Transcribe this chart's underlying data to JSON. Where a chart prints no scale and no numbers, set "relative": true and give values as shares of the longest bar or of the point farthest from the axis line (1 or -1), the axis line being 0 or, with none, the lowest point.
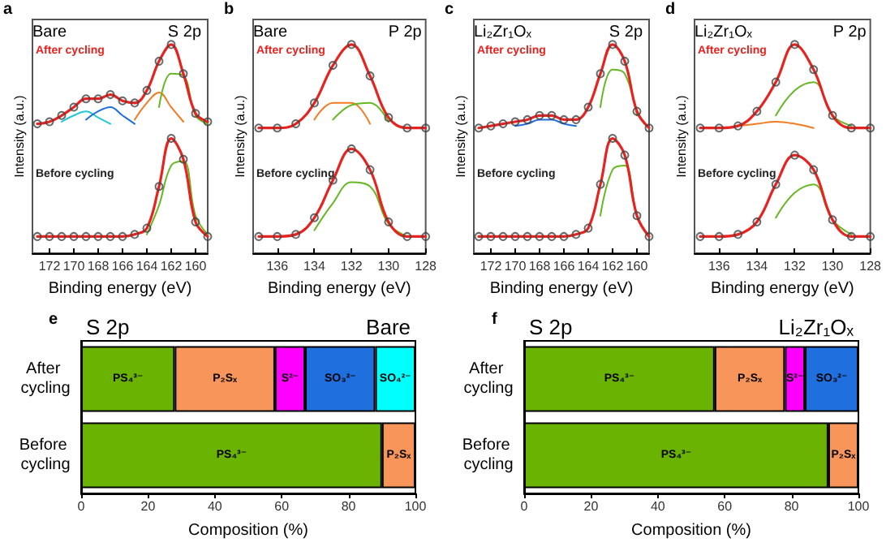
{
  "chart_data": [
    {
      "type": "line",
      "title": "Bare",
      "subtitle": "S 2p",
      "xlabel": "Binding energy (eV)",
      "ylabel": "Intensity (a.u.)",
      "annotations": [
        "a",
        "After cycling",
        "Before cycling"
      ],
      "relative": true,
      "xlim": [
        173.4,
        159
      ],
      "xticks": [
        172,
        170,
        168,
        166,
        164,
        162,
        160
      ],
      "series": [
        {
          "type": "scatter",
          "marker": "circle",
          "color": "#444444",
          "x": [
            173,
            172,
            171,
            170,
            169,
            168,
            167,
            166,
            165,
            164,
            163,
            162,
            161,
            160,
            159
          ],
          "values": [
            0.62,
            0.63,
            0.66,
            0.7,
            0.74,
            0.74,
            0.76,
            0.73,
            0.72,
            0.78,
            0.92,
            1.0,
            0.86,
            0.67,
            0.63
          ]
        },
        {
          "color": "#20c8d8",
          "x": [
            171,
            170,
            169,
            168,
            167
          ],
          "values": [
            0.63,
            0.66,
            0.68,
            0.65,
            0.62
          ]
        },
        {
          "color": "#1e6ee0",
          "x": [
            169,
            168,
            167,
            166,
            165
          ],
          "values": [
            0.64,
            0.68,
            0.7,
            0.66,
            0.62
          ]
        },
        {
          "color": "#f47a20",
          "x": [
            165,
            164,
            163,
            162,
            161
          ],
          "values": [
            0.64,
            0.72,
            0.77,
            0.7,
            0.63
          ]
        },
        {
          "color": "#66b822",
          "x": [
            163,
            162,
            161,
            160,
            159
          ],
          "values": [
            0.7,
            0.86,
            0.85,
            0.66,
            0.62
          ]
        },
        {
          "color": "#e8231f",
          "x": [
            173,
            172,
            171,
            170,
            169,
            168,
            167,
            166,
            165,
            164,
            163,
            162,
            161,
            160,
            159
          ],
          "values": [
            0.62,
            0.63,
            0.66,
            0.7,
            0.74,
            0.74,
            0.76,
            0.73,
            0.72,
            0.78,
            0.92,
            1.0,
            0.86,
            0.67,
            0.63
          ]
        },
        {
          "type": "scatter",
          "marker": "circle",
          "color": "#444444",
          "x": [
            173,
            172,
            171,
            170,
            169,
            168,
            167,
            166,
            165,
            164,
            163,
            162,
            161,
            160,
            159
          ],
          "values": [
            0.08,
            0.08,
            0.08,
            0.08,
            0.08,
            0.08,
            0.08,
            0.08,
            0.09,
            0.12,
            0.32,
            0.55,
            0.45,
            0.15,
            0.08
          ]
        },
        {
          "color": "#66b822",
          "x": [
            164,
            163,
            162,
            161,
            160,
            159
          ],
          "values": [
            0.09,
            0.23,
            0.42,
            0.44,
            0.18,
            0.09
          ]
        },
        {
          "color": "#e8231f",
          "x": [
            173,
            172,
            171,
            170,
            169,
            168,
            167,
            166,
            165,
            164,
            163,
            162,
            161,
            160,
            159
          ],
          "values": [
            0.08,
            0.08,
            0.08,
            0.08,
            0.08,
            0.08,
            0.08,
            0.08,
            0.09,
            0.12,
            0.32,
            0.55,
            0.45,
            0.15,
            0.08
          ]
        }
      ]
    },
    {
      "type": "line",
      "title": "Bare",
      "subtitle": "P 2p",
      "xlabel": "Binding energy (eV)",
      "ylabel": "Intensity (a.u.)",
      "annotations": [
        "b",
        "After cycling",
        "Before cycling"
      ],
      "relative": true,
      "xlim": [
        137.3,
        128
      ],
      "xticks": [
        136,
        134,
        132,
        130,
        128
      ],
      "series": [
        {
          "type": "scatter",
          "marker": "circle",
          "color": "#444444",
          "x": [
            137,
            136,
            135,
            134,
            133,
            132,
            131,
            130,
            129,
            128
          ],
          "values": [
            0.6,
            0.6,
            0.62,
            0.72,
            0.9,
            1.0,
            0.85,
            0.65,
            0.6,
            0.6
          ]
        },
        {
          "color": "#f47a20",
          "x": [
            134,
            133,
            132,
            131
          ],
          "values": [
            0.64,
            0.72,
            0.72,
            0.62
          ]
        },
        {
          "color": "#66b822",
          "x": [
            133,
            132,
            131,
            130
          ],
          "values": [
            0.64,
            0.71,
            0.72,
            0.63
          ]
        },
        {
          "color": "#e8231f",
          "x": [
            137,
            136,
            135,
            134,
            133,
            132,
            131,
            130,
            129,
            128
          ],
          "values": [
            0.6,
            0.6,
            0.62,
            0.72,
            0.9,
            1.0,
            0.85,
            0.65,
            0.6,
            0.6
          ]
        },
        {
          "type": "scatter",
          "marker": "circle",
          "color": "#444444",
          "x": [
            137,
            136,
            135,
            134,
            133,
            132,
            131,
            130,
            129,
            128
          ],
          "values": [
            0.08,
            0.08,
            0.09,
            0.17,
            0.35,
            0.5,
            0.4,
            0.15,
            0.08,
            0.08
          ]
        },
        {
          "color": "#66b822",
          "x": [
            134,
            133,
            132,
            131,
            130,
            129
          ],
          "values": [
            0.11,
            0.24,
            0.34,
            0.32,
            0.14,
            0.08
          ]
        },
        {
          "color": "#e8231f",
          "x": [
            137,
            136,
            135,
            134,
            133,
            132,
            131,
            130,
            129,
            128
          ],
          "values": [
            0.08,
            0.08,
            0.09,
            0.17,
            0.35,
            0.5,
            0.4,
            0.15,
            0.08,
            0.08
          ]
        }
      ]
    },
    {
      "type": "line",
      "title": "Li₂Zr₁Oₓ",
      "subtitle": "S 2p",
      "xlabel": "Binding energy (eV)",
      "ylabel": "Intensity (a.u.)",
      "annotations": [
        "c",
        "After cycling",
        "Before cycling"
      ],
      "relative": true,
      "xlim": [
        173.4,
        159
      ],
      "xticks": [
        172,
        170,
        168,
        166,
        164,
        162,
        160
      ],
      "series": [
        {
          "type": "scatter",
          "marker": "circle",
          "color": "#444444",
          "x": [
            173,
            172,
            171,
            170,
            169,
            168,
            167,
            166,
            165,
            164,
            163,
            162,
            161,
            160,
            159
          ],
          "values": [
            0.6,
            0.61,
            0.62,
            0.63,
            0.64,
            0.66,
            0.66,
            0.64,
            0.64,
            0.7,
            0.86,
            1.0,
            0.92,
            0.68,
            0.6
          ]
        },
        {
          "color": "#1e6ee0",
          "x": [
            170,
            169,
            168,
            167,
            166,
            165
          ],
          "values": [
            0.61,
            0.62,
            0.64,
            0.64,
            0.62,
            0.61
          ]
        },
        {
          "color": "#66b822",
          "x": [
            163,
            162,
            161,
            160
          ],
          "values": [
            0.7,
            0.88,
            0.86,
            0.66
          ]
        },
        {
          "color": "#e8231f",
          "x": [
            173,
            172,
            171,
            170,
            169,
            168,
            167,
            166,
            165,
            164,
            163,
            162,
            161,
            160,
            159
          ],
          "values": [
            0.6,
            0.61,
            0.62,
            0.63,
            0.64,
            0.66,
            0.66,
            0.64,
            0.64,
            0.7,
            0.86,
            1.0,
            0.92,
            0.68,
            0.6
          ]
        },
        {
          "type": "scatter",
          "marker": "circle",
          "color": "#444444",
          "x": [
            173,
            172,
            171,
            170,
            169,
            168,
            167,
            166,
            165,
            164,
            163,
            162,
            161,
            160,
            159
          ],
          "values": [
            0.08,
            0.08,
            0.08,
            0.08,
            0.08,
            0.08,
            0.08,
            0.08,
            0.09,
            0.12,
            0.33,
            0.55,
            0.47,
            0.18,
            0.08
          ]
        },
        {
          "color": "#66b822",
          "x": [
            163,
            162,
            161,
            160,
            159
          ],
          "values": [
            0.18,
            0.4,
            0.42,
            0.18,
            0.08
          ]
        },
        {
          "color": "#e8231f",
          "x": [
            173,
            172,
            171,
            170,
            169,
            168,
            167,
            166,
            165,
            164,
            163,
            162,
            161,
            160,
            159
          ],
          "values": [
            0.08,
            0.08,
            0.08,
            0.08,
            0.08,
            0.08,
            0.08,
            0.08,
            0.09,
            0.12,
            0.33,
            0.55,
            0.47,
            0.18,
            0.08
          ]
        }
      ]
    },
    {
      "type": "line",
      "title": "Li₂Zr₁Oₓ",
      "subtitle": "P 2p",
      "xlabel": "Binding energy (eV)",
      "ylabel": "Intensity (a.u.)",
      "annotations": [
        "d",
        "After cycling",
        "Before cycling"
      ],
      "relative": true,
      "xlim": [
        137.3,
        128
      ],
      "xticks": [
        136,
        134,
        132,
        130,
        128
      ],
      "series": [
        {
          "type": "scatter",
          "marker": "circle",
          "color": "#444444",
          "x": [
            137,
            136,
            135,
            134,
            133,
            132,
            131,
            130,
            129,
            128
          ],
          "values": [
            0.6,
            0.6,
            0.61,
            0.68,
            0.82,
            1.0,
            0.88,
            0.66,
            0.6,
            0.6
          ]
        },
        {
          "color": "#f47a20",
          "x": [
            135,
            134,
            133,
            132,
            131
          ],
          "values": [
            0.61,
            0.62,
            0.63,
            0.62,
            0.6
          ]
        },
        {
          "color": "#66b822",
          "x": [
            133,
            132,
            131,
            130,
            129
          ],
          "values": [
            0.66,
            0.78,
            0.82,
            0.66,
            0.61
          ]
        },
        {
          "color": "#e8231f",
          "x": [
            137,
            136,
            135,
            134,
            133,
            132,
            131,
            130,
            129,
            128
          ],
          "values": [
            0.6,
            0.6,
            0.61,
            0.68,
            0.82,
            1.0,
            0.88,
            0.66,
            0.6,
            0.6
          ]
        },
        {
          "type": "scatter",
          "marker": "circle",
          "color": "#444444",
          "x": [
            137,
            136,
            135,
            134,
            133,
            132,
            131,
            130,
            129,
            128
          ],
          "values": [
            0.08,
            0.08,
            0.09,
            0.15,
            0.33,
            0.47,
            0.4,
            0.16,
            0.08,
            0.08
          ]
        },
        {
          "color": "#66b822",
          "x": [
            133,
            132,
            131,
            130,
            129
          ],
          "values": [
            0.17,
            0.29,
            0.33,
            0.16,
            0.09
          ]
        },
        {
          "color": "#e8231f",
          "x": [
            137,
            136,
            135,
            134,
            133,
            132,
            131,
            130,
            129,
            128
          ],
          "values": [
            0.08,
            0.08,
            0.09,
            0.15,
            0.33,
            0.47,
            0.4,
            0.16,
            0.08,
            0.08
          ]
        }
      ]
    },
    {
      "type": "bar",
      "orientation": "horizontal",
      "stacked": true,
      "title": "Bare",
      "subtitle": "S 2p",
      "xlabel": "Composition (%)",
      "annotations": [
        "e"
      ],
      "categories": [
        "After cycling",
        "Before cycling"
      ],
      "xlim": [
        0,
        100
      ],
      "xticks": [
        0,
        20,
        40,
        60,
        80,
        100
      ],
      "series": [
        {
          "name": "PS₄³⁻",
          "color": "#6ab300",
          "values": [
            28,
            90
          ]
        },
        {
          "name": "P₂Sₓ",
          "color": "#f8955a",
          "values": [
            30,
            10
          ]
        },
        {
          "name": "S²⁻",
          "color": "#ff00ff",
          "values": [
            9,
            null
          ]
        },
        {
          "name": "SO₃²⁻",
          "color": "#1f6fde",
          "values": [
            21,
            null
          ]
        },
        {
          "name": "SO₄²⁻",
          "color": "#00ffff",
          "values": [
            12,
            null
          ]
        }
      ]
    },
    {
      "type": "bar",
      "orientation": "horizontal",
      "stacked": true,
      "title": "Li₂Zr₁Oₓ",
      "subtitle": "S 2p",
      "xlabel": "Composition (%)",
      "annotations": [
        "f"
      ],
      "categories": [
        "After cycling",
        "Before cycling"
      ],
      "xlim": [
        0,
        100
      ],
      "xticks": [
        0,
        20,
        40,
        60,
        80,
        100
      ],
      "series": [
        {
          "name": "PS₄³⁻",
          "color": "#6ab300",
          "values": [
            57,
            91
          ]
        },
        {
          "name": "P₂Sₓ",
          "color": "#f8955a",
          "values": [
            21,
            9
          ]
        },
        {
          "name": "S²⁻",
          "color": "#ff00ff",
          "values": [
            6,
            null
          ]
        },
        {
          "name": "SO₃²⁻",
          "color": "#1f6fde",
          "values": [
            16,
            null
          ]
        }
      ]
    }
  ]
}
